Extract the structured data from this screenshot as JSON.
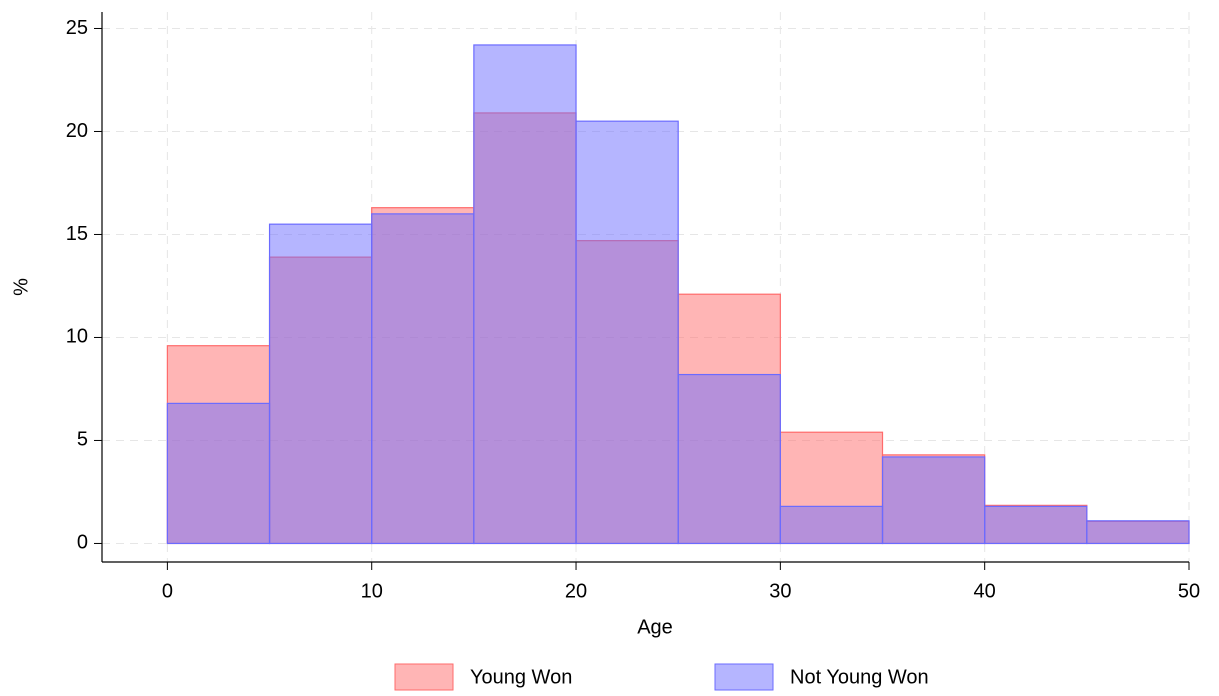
{
  "chart_data": {
    "type": "histogram",
    "xlabel": "Age",
    "ylabel": "%",
    "bins": [
      0,
      5,
      10,
      15,
      20,
      25,
      30,
      35,
      40,
      45,
      50
    ],
    "series": [
      {
        "name": "Young Won",
        "color": "#ff6b6b",
        "values": [
          9.6,
          13.9,
          16.3,
          20.9,
          14.7,
          12.1,
          5.4,
          4.3,
          1.85,
          1.07
        ]
      },
      {
        "name": "Not Young Won",
        "color": "#6b6bff",
        "values": [
          6.8,
          15.5,
          16.0,
          24.2,
          20.5,
          8.2,
          1.8,
          4.2,
          1.8,
          1.1
        ]
      }
    ],
    "xlim": [
      -3.2,
      50
    ],
    "ylim": [
      -0.9,
      25.8
    ],
    "xticks": [
      0,
      10,
      20,
      30,
      40,
      50
    ],
    "yticks": [
      0,
      5,
      10,
      15,
      20,
      25
    ],
    "grid": true,
    "legend": "bottom"
  }
}
